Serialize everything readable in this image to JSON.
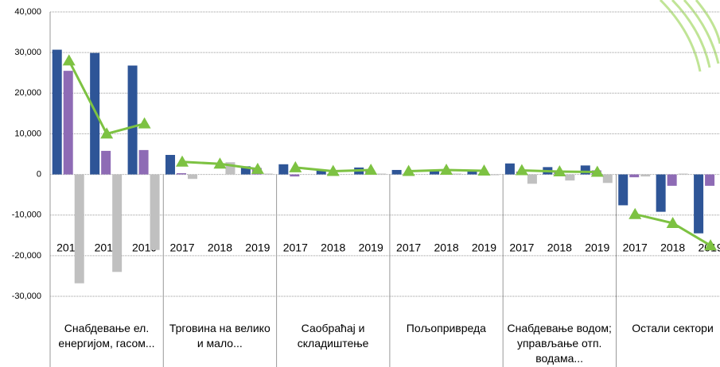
{
  "chart_data": {
    "type": "bar",
    "groups": [
      "Снабдевање ел. енергијом, гасом...",
      "Трговина на велико и мало...",
      "Саобраћај и складиштење",
      "Пољопривреда",
      "Снабдевање водом; управљање отп. водама...",
      "Остали сектори"
    ],
    "categories": [
      "2017",
      "2018",
      "2019",
      "2017",
      "2018",
      "2019",
      "2017",
      "2018",
      "2019",
      "2017",
      "2018",
      "2019",
      "2017",
      "2018",
      "2019",
      "2017",
      "2018",
      "2019"
    ],
    "series": [
      {
        "color": "#2e5597",
        "values": [
          30700,
          29900,
          26800,
          4800,
          0,
          2000,
          2500,
          1000,
          1700,
          1100,
          1000,
          900,
          2700,
          1800,
          2200,
          -7600,
          -9200,
          -14500
        ]
      },
      {
        "color": "#8e6bb5",
        "values": [
          25500,
          5800,
          6000,
          300,
          0,
          1600,
          -500,
          200,
          1000,
          200,
          400,
          200,
          700,
          600,
          1000,
          -700,
          -2800,
          -2800
        ]
      },
      {
        "color": "#c0c0c0",
        "values": [
          -26800,
          -24000,
          -18600,
          -1100,
          3000,
          200,
          0,
          0,
          200,
          0,
          200,
          -200,
          -2300,
          -1500,
          -2100,
          -500,
          200,
          0
        ]
      },
      {
        "type": "line",
        "color": "#7dc242",
        "values": [
          28000,
          10000,
          12500,
          3100,
          2600,
          1300,
          1700,
          800,
          1100,
          800,
          1100,
          900,
          1000,
          700,
          600,
          -9800,
          -12000,
          -17500
        ]
      }
    ],
    "ylim": [
      -30000,
      40000
    ],
    "yticks": [
      {
        "value": -30000,
        "label": "-30,000"
      },
      {
        "value": -20000,
        "label": "-20,000"
      },
      {
        "value": -10000,
        "label": "-10,000"
      },
      0,
      {
        "value": 10000,
        "label": "10,000"
      },
      {
        "value": 20000,
        "label": "20,000"
      },
      {
        "value": 30000,
        "label": "30,000"
      },
      {
        "value": 40000,
        "label": "40,000"
      }
    ],
    "grid": true
  }
}
